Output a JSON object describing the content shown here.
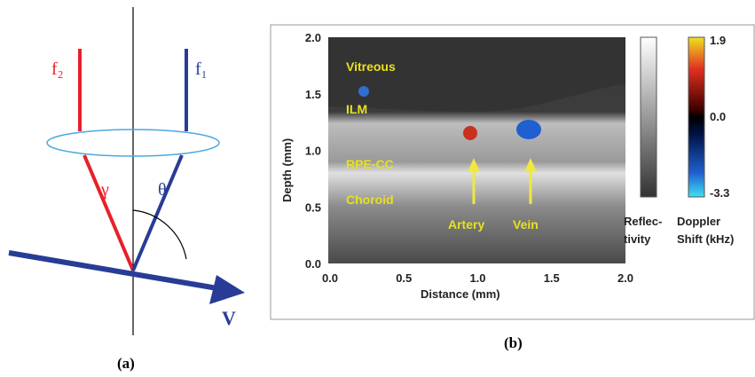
{
  "panel_a": {
    "labels": {
      "f2": "f₂",
      "f1": "f₁",
      "gamma": "γ",
      "theta": "θ",
      "v": "V"
    },
    "caption": "(a)"
  },
  "panel_b": {
    "annotations": {
      "vitreous": "Vitreous",
      "ilm": "ILM",
      "rpe_cc": "RPE-CC",
      "choroid": "Choroid",
      "artery": "Artery",
      "vein": "Vein"
    },
    "y_label": "Depth (mm)",
    "x_label": "Distance (mm)",
    "xticks": [
      "0.0",
      "0.5",
      "1.0",
      "1.5",
      "2.0"
    ],
    "yticks": [
      "0.0",
      "0.5",
      "1.0",
      "1.5",
      "2.0"
    ],
    "reflectivity_label": [
      "Reflec-",
      "tivity"
    ],
    "doppler_label": [
      "Doppler",
      "Shift (kHz)"
    ],
    "doppler_ticks": [
      "1.9",
      "0.0",
      "-3.3"
    ],
    "caption": "(b)"
  }
}
